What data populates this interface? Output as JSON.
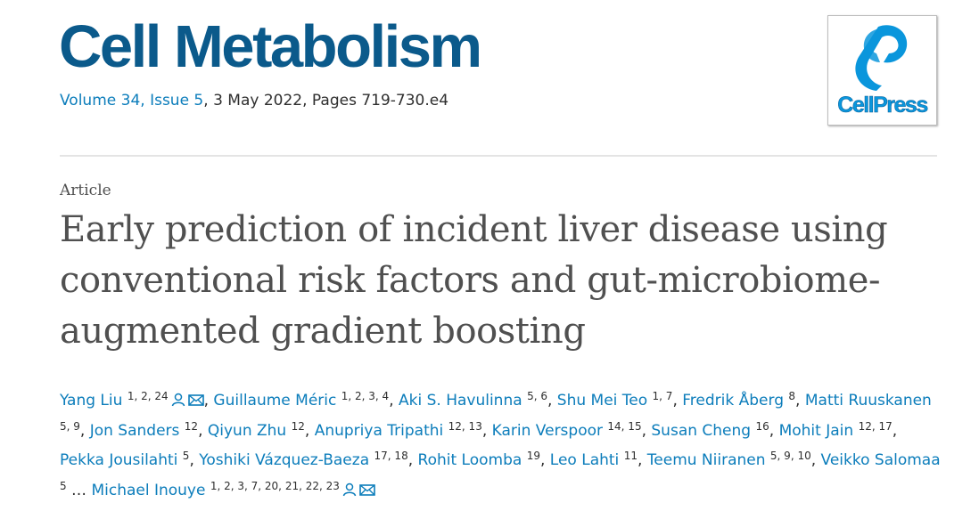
{
  "header": {
    "journal": "Cell Metabolism",
    "volume_issue": "Volume 34, Issue 5",
    "citation_rest": ", 3 May 2022, Pages 719-730.e4",
    "publisher_logo": "CellPress"
  },
  "article": {
    "type": "Article",
    "title": "Early prediction of incident liver disease using conventional risk factors and gut-microbiome-augmented gradient boosting",
    "separator": ", ",
    "ellipsis": "…",
    "authors": [
      {
        "name": "Yang Liu",
        "affiliations": "1, 2, 24",
        "corresponding": true
      },
      {
        "name": "Guillaume Méric",
        "affiliations": "1, 2, 3, 4"
      },
      {
        "name": "Aki S. Havulinna",
        "affiliations": "5, 6"
      },
      {
        "name": "Shu Mei Teo",
        "affiliations": "1, 7"
      },
      {
        "name": "Fredrik Åberg",
        "affiliations": "8"
      },
      {
        "name": "Matti Ruuskanen",
        "affiliations": "5, 9"
      },
      {
        "name": "Jon Sanders",
        "affiliations": "12"
      },
      {
        "name": "Qiyun Zhu",
        "affiliations": "12"
      },
      {
        "name": "Anupriya Tripathi",
        "affiliations": "12, 13"
      },
      {
        "name": "Karin Verspoor",
        "affiliations": "14, 15"
      },
      {
        "name": "Susan Cheng",
        "affiliations": "16"
      },
      {
        "name": "Mohit Jain",
        "affiliations": "12, 17"
      },
      {
        "name": "Pekka Jousilahti",
        "affiliations": "5"
      },
      {
        "name": "Yoshiki Vázquez-Baeza",
        "affiliations": "17, 18"
      },
      {
        "name": "Rohit Loomba",
        "affiliations": "19"
      },
      {
        "name": "Leo Lahti",
        "affiliations": "11"
      },
      {
        "name": "Teemu Niiranen",
        "affiliations": "5, 9, 10"
      },
      {
        "name": "Veikko Salomaa",
        "affiliations": "5"
      },
      {
        "name": "Michael Inouye",
        "affiliations": "1, 2, 3, 7, 20, 21, 22, 23",
        "corresponding": true,
        "after_ellipsis": true
      }
    ]
  }
}
